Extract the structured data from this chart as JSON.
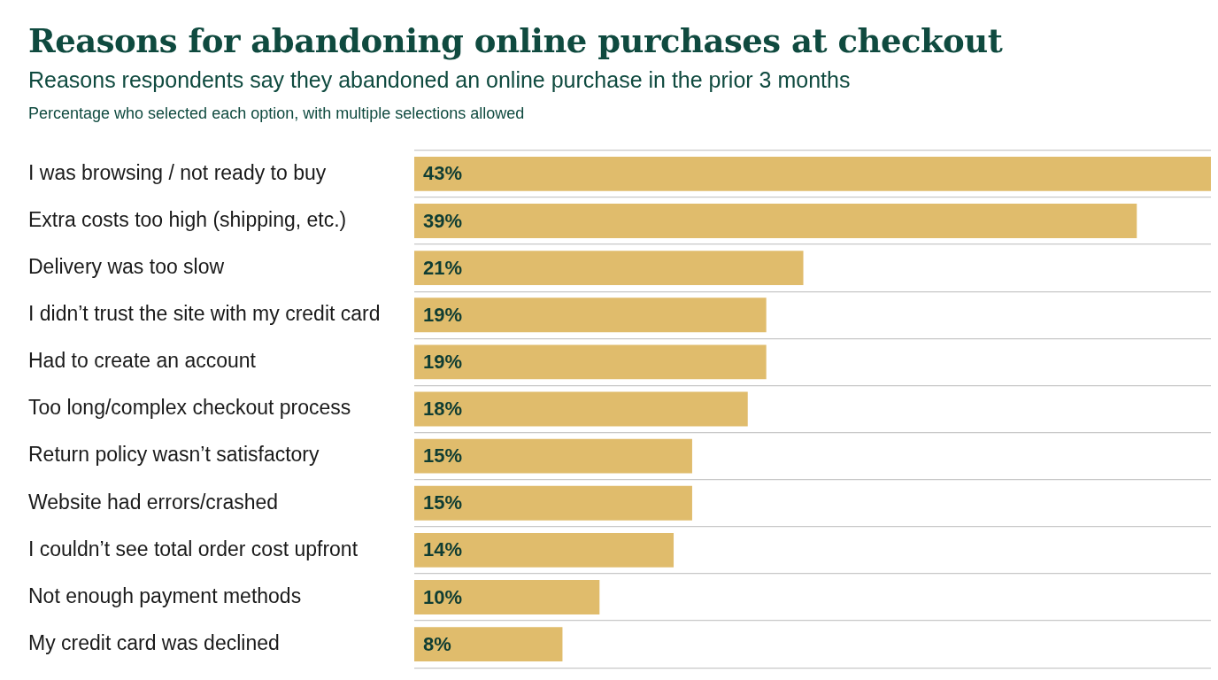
{
  "chart_data": {
    "type": "bar",
    "orientation": "horizontal",
    "title": "Reasons for abandoning online purchases at checkout",
    "subtitle": "Reasons respondents say they abandoned an online purchase in the prior 3 months",
    "annotations": [
      "Percentage who selected each option, with multiple selections allowed"
    ],
    "categories": [
      "I was browsing / not ready to buy",
      "Extra costs too high (shipping, etc.)",
      "Delivery was too slow",
      "I didn’t trust the site with my credit card",
      "Had to create an account",
      "Too long/complex checkout process",
      "Return policy wasn’t satisfactory",
      "Website had errors/crashed",
      "I couldn’t see total order cost upfront",
      "Not enough payment methods",
      "My credit card was declined"
    ],
    "values": [
      43,
      39,
      21,
      19,
      19,
      18,
      15,
      15,
      14,
      10,
      8
    ],
    "value_labels": [
      "43%",
      "39%",
      "21%",
      "19%",
      "19%",
      "18%",
      "15%",
      "15%",
      "14%",
      "10%",
      "8%"
    ],
    "color": "#e0bc6c",
    "xlim": [
      0,
      43
    ],
    "grid": "y",
    "tick_labels": "y",
    "legend": false
  }
}
